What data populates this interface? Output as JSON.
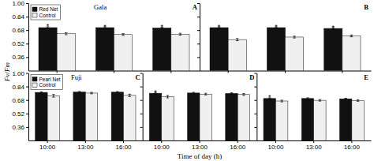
{
  "chart_data": [
    {
      "type": "bar",
      "title": "A",
      "subtitle": "Gala",
      "ylabel": "Fv/Fm",
      "categories": [
        "10:00",
        "13:00",
        "16:00"
      ],
      "series": [
        {
          "name": "Red Net",
          "color": "#111111",
          "values": [
            0.71,
            0.71,
            0.706
          ],
          "errors": [
            0.01,
            0.009,
            0.009
          ]
        },
        {
          "name": "Control",
          "color": "#f0f0f0",
          "values": [
            0.638,
            0.628,
            0.632
          ],
          "errors": [
            0.012,
            0.011,
            0.011
          ]
        }
      ],
      "annotations": [
        {
          "text": "*",
          "category": "10:00"
        },
        {
          "text": "*",
          "category": "13:00"
        },
        {
          "text": "*",
          "category": "16:00"
        }
      ],
      "ylim": [
        0.2,
        1.0
      ],
      "yticks": [
        0.36,
        0.52,
        0.68,
        0.84,
        {
          "value": 1.0,
          "label": "1.00"
        }
      ],
      "grid": false,
      "legend": "upper left",
      "tick_labels": "y"
    },
    {
      "type": "bar",
      "title": "B",
      "categories": [
        "10:00",
        "13:00",
        "16:00"
      ],
      "series": [
        {
          "color": "#111111",
          "values": [
            0.71,
            0.71,
            0.7
          ],
          "errors": [
            0.009,
            0.008,
            0.009
          ]
        },
        {
          "color": "#f0f0f0",
          "values": [
            0.568,
            0.598,
            0.612
          ],
          "errors": [
            0.013,
            0.011,
            0.011
          ]
        }
      ],
      "annotations": [
        {
          "text": "*",
          "category": "10:00"
        },
        {
          "text": "*",
          "category": "13:00"
        },
        {
          "text": "*",
          "category": "16:00"
        }
      ],
      "ylim": [
        0.2,
        1.0
      ],
      "yticks": [
        0.36,
        0.52,
        0.68,
        0.84,
        {
          "value": 1.0,
          "label": "1.00"
        }
      ],
      "grid": false,
      "tick_labels": false
    },
    {
      "type": "bar",
      "title": "C",
      "subtitle": "Fuji",
      "categories": [
        "10:00",
        "13:00",
        "16:00"
      ],
      "series": [
        {
          "name": "Pearl Net",
          "color": "#111111",
          "values": [
            0.77,
            0.775,
            0.773
          ],
          "errors": [
            0.007,
            0.006,
            0.007
          ]
        },
        {
          "name": "Control",
          "color": "#f0f0f0",
          "values": [
            0.73,
            0.762,
            0.735
          ],
          "errors": [
            0.016,
            0.009,
            0.014
          ]
        }
      ],
      "ylim": [
        0.2,
        1.0
      ],
      "yticks": [
        0.36,
        0.52,
        0.68,
        0.84,
        {
          "value": 1.0,
          "label": "1.00"
        }
      ],
      "grid": false,
      "legend": "upper left"
    },
    {
      "type": "bar",
      "title": "D",
      "xlabel": "Time of day (h)",
      "categories": [
        "10:00",
        "13:00",
        "16:00"
      ],
      "series": [
        {
          "color": "#111111",
          "values": [
            0.76,
            0.763,
            0.758
          ],
          "errors": [
            0.009,
            0.008,
            0.008
          ]
        },
        {
          "color": "#f0f0f0",
          "values": [
            0.72,
            0.75,
            0.745
          ],
          "errors": [
            0.014,
            0.01,
            0.011
          ]
        }
      ],
      "annotations": [
        {
          "text": "*",
          "category": "10:00"
        }
      ],
      "ylim": [
        0.2,
        1.0
      ],
      "yticks": [
        0.36,
        0.52,
        0.68,
        0.84,
        {
          "value": 1.0,
          "label": "1.00"
        }
      ],
      "grid": false,
      "tick_labels": "x"
    },
    {
      "type": "bar",
      "title": "E",
      "categories": [
        "10:00",
        "13:00",
        "16:00"
      ],
      "series": [
        {
          "color": "#111111",
          "values": [
            0.698,
            0.698,
            0.694
          ],
          "errors": [
            0.008,
            0.008,
            0.007
          ]
        },
        {
          "color": "#f0f0f0",
          "values": [
            0.668,
            0.676,
            0.674
          ],
          "errors": [
            0.01,
            0.009,
            0.009
          ]
        }
      ],
      "annotations": [
        {
          "text": "*",
          "category": "10:00"
        }
      ],
      "ylim": [
        0.2,
        1.0
      ],
      "yticks": [
        0.36,
        0.52,
        0.68,
        0.84,
        {
          "value": 1.0,
          "label": "1.00"
        }
      ],
      "grid": false,
      "tick_labels": "x"
    }
  ]
}
